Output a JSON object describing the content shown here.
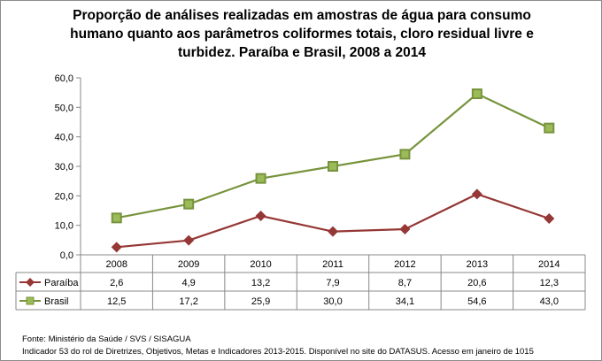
{
  "chart_data": {
    "type": "line",
    "title": "Proporção de análises realizadas em amostras de água para consumo humano quanto aos parâmetros coliformes totais, cloro residual livre e turbidez. Paraíba e Brasil, 2008 a 2014",
    "categories": [
      "2008",
      "2009",
      "2010",
      "2011",
      "2012",
      "2013",
      "2014"
    ],
    "series": [
      {
        "name": "Paraíba",
        "values": [
          2.6,
          4.9,
          13.2,
          7.9,
          8.7,
          20.6,
          12.3
        ],
        "labels": [
          "2,6",
          "4,9",
          "13,2",
          "7,9",
          "8,7",
          "20,6",
          "12,3"
        ],
        "color": "#953735",
        "marker": "diamond"
      },
      {
        "name": "Brasil",
        "values": [
          12.5,
          17.2,
          25.9,
          30.0,
          34.1,
          54.6,
          43.0
        ],
        "labels": [
          "12,5",
          "17,2",
          "25,9",
          "30,0",
          "34,1",
          "54,6",
          "43,0"
        ],
        "color": "#77933C",
        "marker": "square"
      }
    ],
    "ylim": [
      0,
      60
    ],
    "yticks": [
      0,
      10,
      20,
      30,
      40,
      50,
      60
    ],
    "ytick_labels": [
      "0,0",
      "10,0",
      "20,0",
      "30,0",
      "40,0",
      "50,0",
      "60,0"
    ],
    "grid": false,
    "legend": "data-table"
  },
  "footer": {
    "source": "Fonte: Ministério da Saúde / SVS / SISAGUA",
    "note": "Indicador 53 do rol de Diretrizes, Objetivos, Metas e Indicadores 2013-2015. Disponível no site do DATASUS. Acesso em janeiro de 1015"
  }
}
